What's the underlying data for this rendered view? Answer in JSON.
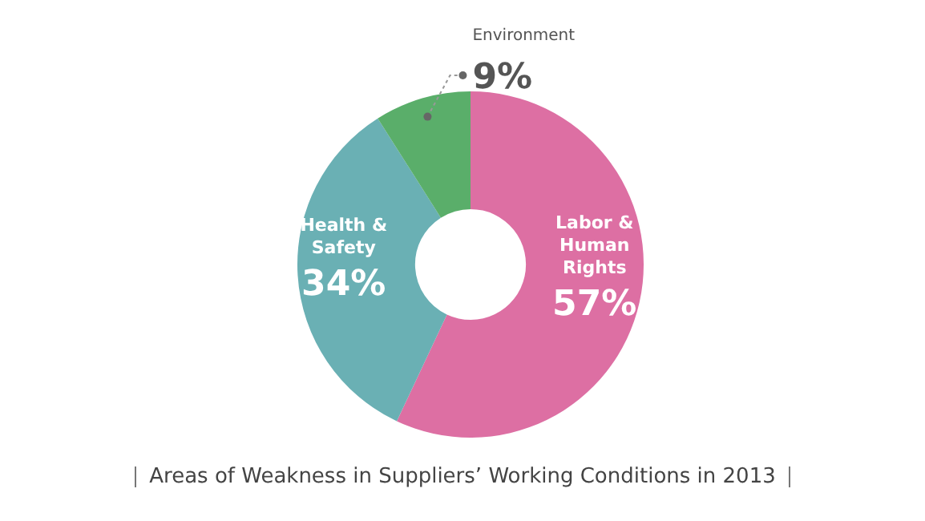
{
  "chart_data": {
    "type": "donut",
    "title": "Areas of Weakness in Suppliers’ Working Conditions in 2013",
    "categories": [
      "Labor & Human Rights",
      "Health & Safety",
      "Environment"
    ],
    "values": [
      57,
      34,
      9
    ],
    "colors": [
      "#dd6fa3",
      "#6ab0b4",
      "#5aae6a"
    ],
    "value_labels": [
      "57%",
      "34%",
      "9%"
    ],
    "legend": false
  }
}
